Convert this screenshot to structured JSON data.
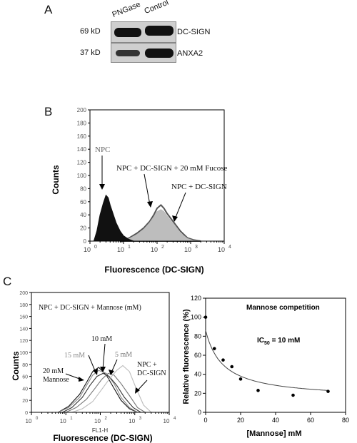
{
  "panel_a": {
    "letter": "A",
    "lanes": [
      "PNGase",
      "Control"
    ],
    "blots": [
      {
        "size": "69 kD",
        "protein": "DC-SIGN",
        "intensity": [
          0.95,
          0.9
        ]
      },
      {
        "size": "37 kD",
        "protein": "ANXA2",
        "intensity": [
          0.7,
          0.9
        ]
      }
    ]
  },
  "panel_b": {
    "letter": "B",
    "ylabel": "Counts",
    "xlabel": "Fluorescence (DC-SIGN)",
    "annotations": {
      "npc": "NPC",
      "fucose": "NPC + DC-SIGN + 20 mM Fucose",
      "dcsign": "NPC + DC-SIGN"
    },
    "y_ticks": [
      "0",
      "20",
      "40",
      "60",
      "80",
      "100",
      "120",
      "140",
      "160",
      "180",
      "200"
    ],
    "x_ticks": {
      "base": "10",
      "exps": [
        "0",
        "1",
        "2",
        "3",
        "4"
      ]
    }
  },
  "panel_c": {
    "letter": "C",
    "histogram": {
      "ylabel": "Counts",
      "xlabel": "Fluorescence (DC-SIGN)",
      "x_sublabel": "FL1-H",
      "title": "NPC + DC-SIGN + Mannose (mM)",
      "labels": {
        "m20": "20 mM\nMannose",
        "m15": "15 mM",
        "m10": "10 mM",
        "m5": "5 mM",
        "npc_dcsign": "NPC +\nDC-SIGN"
      },
      "y_ticks": [
        "0",
        "20",
        "40",
        "60",
        "80",
        "100",
        "120",
        "140",
        "160",
        "180",
        "200"
      ],
      "x_ticks": {
        "base": "10",
        "exps": [
          "0",
          "1",
          "2",
          "3",
          "4"
        ]
      }
    },
    "competition": {
      "title": "Mannose competition",
      "ic50_label": "IC",
      "ic50_sub": "50",
      "ic50_value": " = 10 mM",
      "ylabel": "Relative fluorescence (%)",
      "xlabel": "[Mannose] mM",
      "x_ticks": [
        "0",
        "20",
        "40",
        "60",
        "80"
      ],
      "y_ticks": [
        "0",
        "20",
        "40",
        "60",
        "80",
        "100",
        "120"
      ]
    }
  },
  "chart_data": [
    {
      "type": "area",
      "title": "",
      "xlabel": "Fluorescence (DC-SIGN)",
      "ylabel": "Counts",
      "x_scale": "log",
      "xlim": [
        1,
        10000
      ],
      "ylim": [
        0,
        200
      ],
      "grid": false,
      "series": [
        {
          "name": "NPC",
          "color": "#111111",
          "x": [
            1.3,
            1.6,
            2,
            2.5,
            3,
            3.5,
            4,
            5,
            6,
            8,
            10,
            14,
            20
          ],
          "y": [
            0,
            15,
            40,
            58,
            70,
            66,
            55,
            40,
            28,
            15,
            8,
            3,
            0
          ]
        },
        {
          "name": "NPC + DC-SIGN + 20 mM Fucose",
          "color": "#555555",
          "x": [
            8,
            15,
            25,
            40,
            60,
            80,
            100,
            130,
            160,
            200,
            300,
            500,
            800,
            1200,
            2000
          ],
          "y": [
            0,
            5,
            12,
            20,
            30,
            40,
            50,
            55,
            50,
            42,
            30,
            15,
            5,
            2,
            0
          ]
        },
        {
          "name": "NPC + DC-SIGN",
          "color": "#bbbbbb",
          "x": [
            8,
            15,
            25,
            40,
            60,
            80,
            100,
            130,
            160,
            200,
            300,
            500,
            800,
            1200,
            2000
          ],
          "y": [
            0,
            4,
            10,
            18,
            28,
            37,
            45,
            48,
            45,
            38,
            27,
            12,
            4,
            1,
            0
          ]
        }
      ]
    },
    {
      "type": "line",
      "title": "NPC + DC-SIGN + Mannose (mM)",
      "xlabel": "Fluorescence (DC-SIGN)",
      "ylabel": "Counts",
      "x_scale": "log",
      "xlim": [
        1,
        10000
      ],
      "ylim": [
        0,
        200
      ],
      "series": [
        {
          "name": "20 mM Mannose",
          "color": "#111111",
          "x": [
            6,
            12,
            25,
            40,
            60,
            90,
            150,
            250,
            400,
            700,
            1200
          ],
          "y": [
            0,
            10,
            30,
            50,
            68,
            75,
            62,
            40,
            20,
            6,
            0
          ]
        },
        {
          "name": "15 mM",
          "color": "#888888",
          "x": [
            6,
            12,
            25,
            40,
            60,
            90,
            150,
            250,
            400,
            700,
            1200
          ],
          "y": [
            0,
            8,
            25,
            45,
            62,
            70,
            65,
            48,
            25,
            8,
            0
          ]
        },
        {
          "name": "10 mM",
          "color": "#333333",
          "x": [
            8,
            15,
            30,
            50,
            80,
            120,
            180,
            300,
            500,
            900,
            1500
          ],
          "y": [
            0,
            8,
            25,
            45,
            60,
            65,
            60,
            45,
            25,
            8,
            0
          ]
        },
        {
          "name": "5 mM",
          "color": "#777777",
          "x": [
            10,
            20,
            40,
            70,
            110,
            170,
            250,
            400,
            700,
            1200,
            2000
          ],
          "y": [
            0,
            8,
            22,
            40,
            55,
            65,
            62,
            48,
            28,
            8,
            0
          ]
        },
        {
          "name": "NPC + DC-SIGN",
          "color": "#bbbbbb",
          "x": [
            15,
            30,
            60,
            100,
            180,
            300,
            450,
            700,
            1100,
            1800,
            3000
          ],
          "y": [
            0,
            6,
            18,
            35,
            55,
            70,
            78,
            68,
            40,
            12,
            0
          ]
        }
      ]
    },
    {
      "type": "scatter",
      "title": "Mannose competition",
      "xlabel": "[Mannose] mM",
      "ylabel": "Relative fluorescence (%)",
      "xlim": [
        0,
        80
      ],
      "ylim": [
        0,
        120
      ],
      "series": [
        {
          "name": "data",
          "color": "#000000",
          "x": [
            0,
            5,
            10,
            15,
            20,
            30,
            50,
            70
          ],
          "y": [
            100,
            67,
            55,
            48,
            35,
            23,
            18,
            22
          ]
        },
        {
          "name": "fit",
          "color": "#444444",
          "ic50": 10
        }
      ]
    }
  ]
}
